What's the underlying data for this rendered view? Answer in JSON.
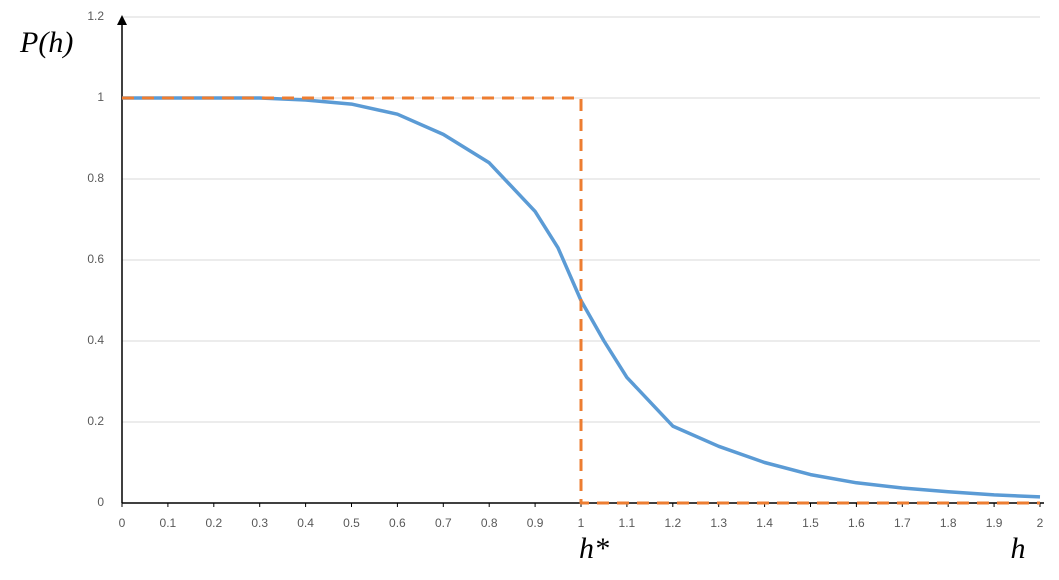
{
  "chart_data": {
    "type": "line",
    "x_label": "h",
    "y_label": "P(h)",
    "annotation": "h*",
    "series": [
      {
        "color": "#5b9bd5",
        "dashed": false,
        "x": [
          0,
          0.1,
          0.2,
          0.3,
          0.4,
          0.5,
          0.6,
          0.7,
          0.8,
          0.9,
          0.95,
          1,
          1.05,
          1.1,
          1.2,
          1.3,
          1.4,
          1.5,
          1.6,
          1.7,
          1.8,
          1.9,
          2
        ],
        "values": [
          1,
          1,
          1,
          1,
          0.995,
          0.985,
          0.96,
          0.91,
          0.84,
          0.72,
          0.63,
          0.5,
          0.4,
          0.31,
          0.19,
          0.14,
          0.1,
          0.07,
          0.05,
          0.037,
          0.028,
          0.02,
          0.015
        ]
      },
      {
        "color": "#ed7d31",
        "dashed": true,
        "x": [
          0,
          1,
          1,
          2
        ],
        "values": [
          1,
          1,
          0,
          0
        ]
      }
    ],
    "xlim": [
      0,
      2
    ],
    "ylim": [
      0,
      1.2
    ],
    "xticks": [
      0,
      0.1,
      0.2,
      0.3,
      0.4,
      0.5,
      0.6,
      0.7,
      0.8,
      0.9,
      1,
      1.1,
      1.2,
      1.3,
      1.4,
      1.5,
      1.6,
      1.7,
      1.8,
      1.9,
      2
    ],
    "yticks": [
      0,
      0.2,
      0.4,
      0.6,
      0.8,
      1,
      1.2
    ],
    "grid": true
  }
}
